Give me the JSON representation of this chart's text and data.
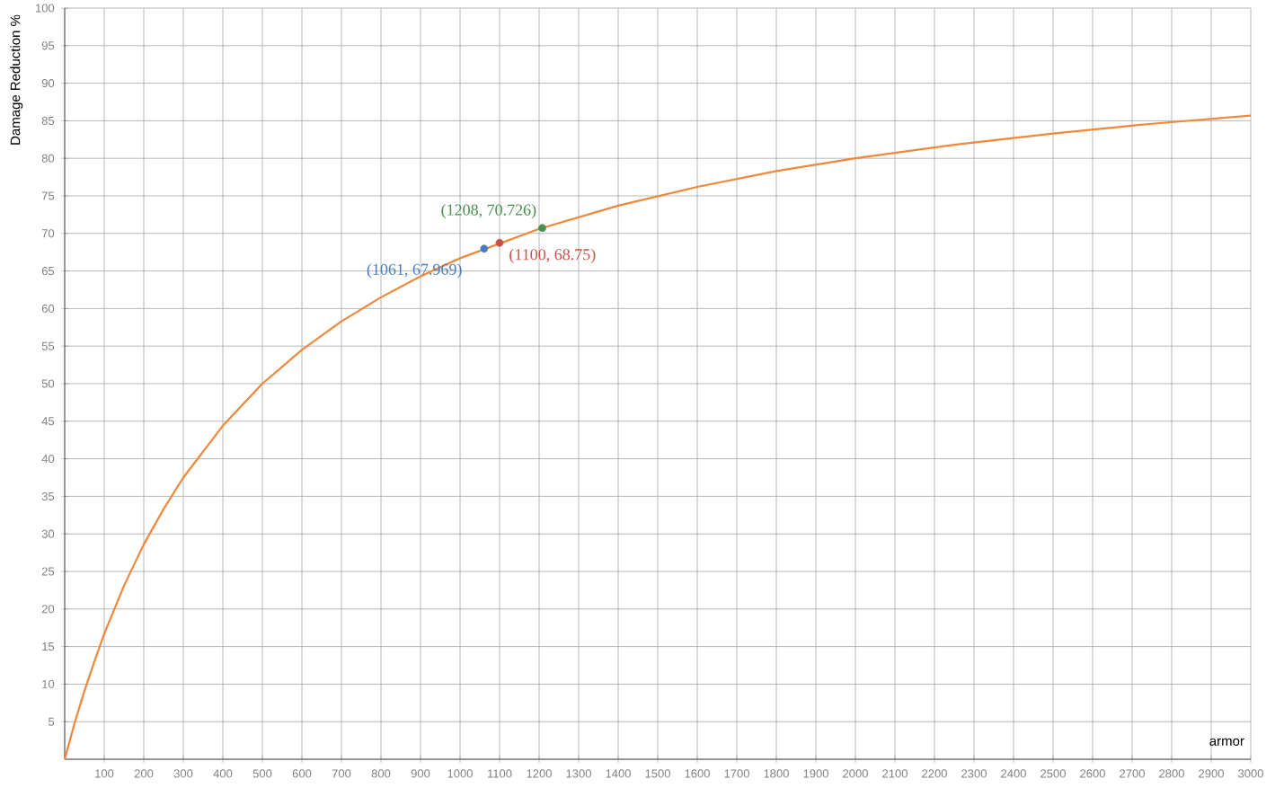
{
  "chart_data": {
    "type": "line",
    "xlabel": "armor",
    "ylabel": "Damage Reduction %",
    "x": [
      0,
      25,
      50,
      75,
      100,
      150,
      200,
      250,
      300,
      400,
      500,
      600,
      700,
      800,
      900,
      1000,
      1200,
      1400,
      1600,
      1800,
      2000,
      2250,
      2500,
      2750,
      3000
    ],
    "series": [
      {
        "color": "#f0873a",
        "marker": "none",
        "values": [
          0,
          4.8,
          9.1,
          13.0,
          16.7,
          23.1,
          28.6,
          33.3,
          37.5,
          44.4,
          50,
          54.5,
          58.3,
          61.5,
          64.3,
          66.7,
          70.6,
          73.7,
          76.2,
          78.3,
          80,
          81.8,
          83.3,
          84.6,
          85.7
        ]
      },
      {
        "type": "scatter",
        "marker": "circle",
        "x": [
          1061,
          1100,
          1208
        ],
        "values": [
          67.969,
          68.75,
          70.726
        ],
        "colors": [
          "#4a7cc0",
          "#c8504a",
          "#4a8f50"
        ]
      }
    ],
    "annotations": [
      {
        "text": "(1061, 67.969)",
        "x": 1061,
        "y": 67.969
      },
      {
        "text": "(1100, 68.75)",
        "x": 1100,
        "y": 68.75
      },
      {
        "text": "(1208, 70.726)",
        "x": 1208,
        "y": 70.726
      }
    ],
    "xlim": [
      0,
      3000
    ],
    "ylim": [
      0,
      100
    ],
    "xticks": [
      100,
      200,
      300,
      400,
      500,
      600,
      700,
      800,
      900,
      1000,
      1100,
      1200,
      1300,
      1400,
      1500,
      1600,
      1700,
      1800,
      1900,
      2000,
      2100,
      2200,
      2300,
      2400,
      2500,
      2600,
      2700,
      2800,
      2900,
      3000
    ],
    "yticks": [
      5,
      10,
      15,
      20,
      25,
      30,
      35,
      40,
      45,
      50,
      55,
      60,
      65,
      70,
      75,
      80,
      85,
      90,
      95,
      100
    ],
    "grid": true
  }
}
